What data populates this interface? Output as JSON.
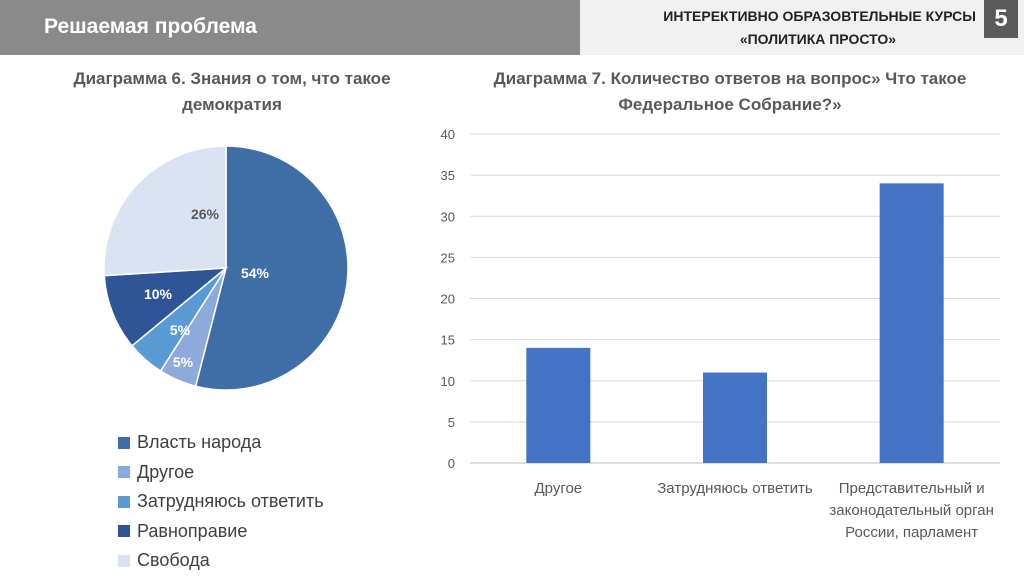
{
  "header": {
    "title": "Решаемая проблема"
  },
  "course": {
    "line1": "ИНТЕРЕКТИВНО ОБРАЗОВТЕЛЬНЫЕ КУРСЫ",
    "line2": "«ПОЛИТИКА ПРОСТО»",
    "slide_number": "5"
  },
  "colors": {
    "header_bg": "#8a8a8a",
    "badge_bg": "#5a5a5a",
    "bar": "#4472c4"
  },
  "chart_data": [
    {
      "type": "pie",
      "title": "Диаграмма 6. Знания о том, что такое демократия",
      "slices": [
        {
          "label": "Власть народа",
          "value": 54,
          "display": "54%",
          "color": "#3f6ea6"
        },
        {
          "label": "Другое",
          "value": 5,
          "display": "5%",
          "color": "#8eaadb"
        },
        {
          "label": "Затрудняюсь ответить",
          "value": 5,
          "display": "5%",
          "color": "#5b9bd5"
        },
        {
          "label": "Равноправие",
          "value": 10,
          "display": "10%",
          "color": "#2f5597"
        },
        {
          "label": "Свобода",
          "value": 26,
          "display": "26%",
          "color": "#dae3f3"
        }
      ],
      "legend_position": "bottom"
    },
    {
      "type": "bar",
      "title": "Диаграмма 7. Количество ответов на вопрос» Что такое Федеральное Собрание?»",
      "categories": [
        "Другое",
        "Затрудняюсь ответить",
        "Представительный и законодательный орган России, парламент"
      ],
      "values": [
        14,
        11,
        34
      ],
      "ylim": [
        0,
        40
      ],
      "yticks": [
        "0",
        "5",
        "10",
        "15",
        "20",
        "25",
        "30",
        "35",
        "40"
      ],
      "grid": true,
      "color": "#4472c4"
    }
  ]
}
